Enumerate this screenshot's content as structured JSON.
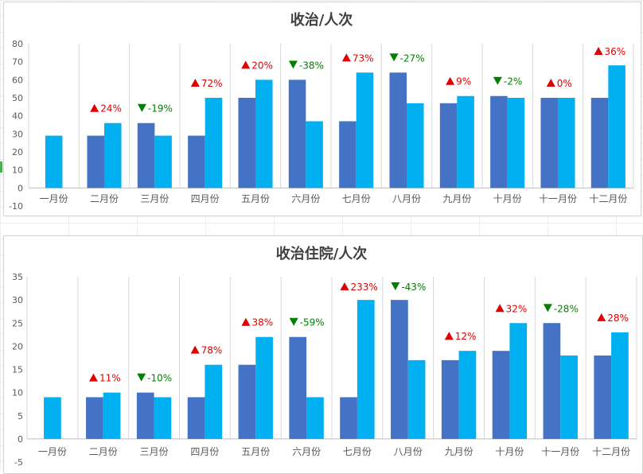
{
  "colors": {
    "prev": "#4472C4",
    "curr": "#00B0F0",
    "up": "#E00000",
    "down": "#008000"
  },
  "chart_data": [
    {
      "type": "bar",
      "title": "收治/人次",
      "categories": [
        "一月份",
        "二月份",
        "三月份",
        "四月份",
        "五月份",
        "六月份",
        "七月份",
        "八月份",
        "九月份",
        "十月份",
        "十一月份",
        "十二月份"
      ],
      "ylim": [
        -10,
        80
      ],
      "yticks": [
        -10,
        0,
        10,
        20,
        30,
        40,
        50,
        60,
        70,
        80
      ],
      "grid": "vertical",
      "legend": "none",
      "series": [
        {
          "values": [
            0,
            29,
            36,
            29,
            50,
            60,
            37,
            64,
            47,
            51,
            50,
            50
          ]
        },
        {
          "values": [
            29,
            36,
            29,
            50,
            60,
            37,
            64,
            47,
            51,
            50,
            50,
            68
          ]
        }
      ],
      "annotations": [
        "",
        "24%",
        "-19%",
        "72%",
        "20%",
        "-38%",
        "73%",
        "-27%",
        "9%",
        "-2%",
        "0%",
        "36%"
      ],
      "annotation_dir": [
        "",
        "up",
        "down",
        "up",
        "up",
        "down",
        "up",
        "down",
        "up",
        "down",
        "up",
        "up"
      ]
    },
    {
      "type": "bar",
      "title": "收治住院/人次",
      "categories": [
        "一月份",
        "二月份",
        "三月份",
        "四月份",
        "五月份",
        "六月份",
        "七月份",
        "八月份",
        "九月份",
        "十月份",
        "十一月份",
        "十二月份"
      ],
      "ylim": [
        -5,
        35
      ],
      "yticks": [
        -5,
        0,
        5,
        10,
        15,
        20,
        25,
        30,
        35
      ],
      "grid": "vertical",
      "legend": "none",
      "series": [
        {
          "values": [
            0,
            9,
            10,
            9,
            16,
            22,
            9,
            30,
            17,
            19,
            25,
            18
          ]
        },
        {
          "values": [
            9,
            10,
            9,
            16,
            22,
            9,
            30,
            17,
            19,
            25,
            18,
            23
          ]
        }
      ],
      "annotations": [
        "",
        "11%",
        "-10%",
        "78%",
        "38%",
        "-59%",
        "233%",
        "-43%",
        "12%",
        "32%",
        "-28%",
        "28%"
      ],
      "annotation_dir": [
        "",
        "up",
        "down",
        "up",
        "up",
        "down",
        "up",
        "down",
        "up",
        "up",
        "down",
        "up"
      ]
    }
  ]
}
